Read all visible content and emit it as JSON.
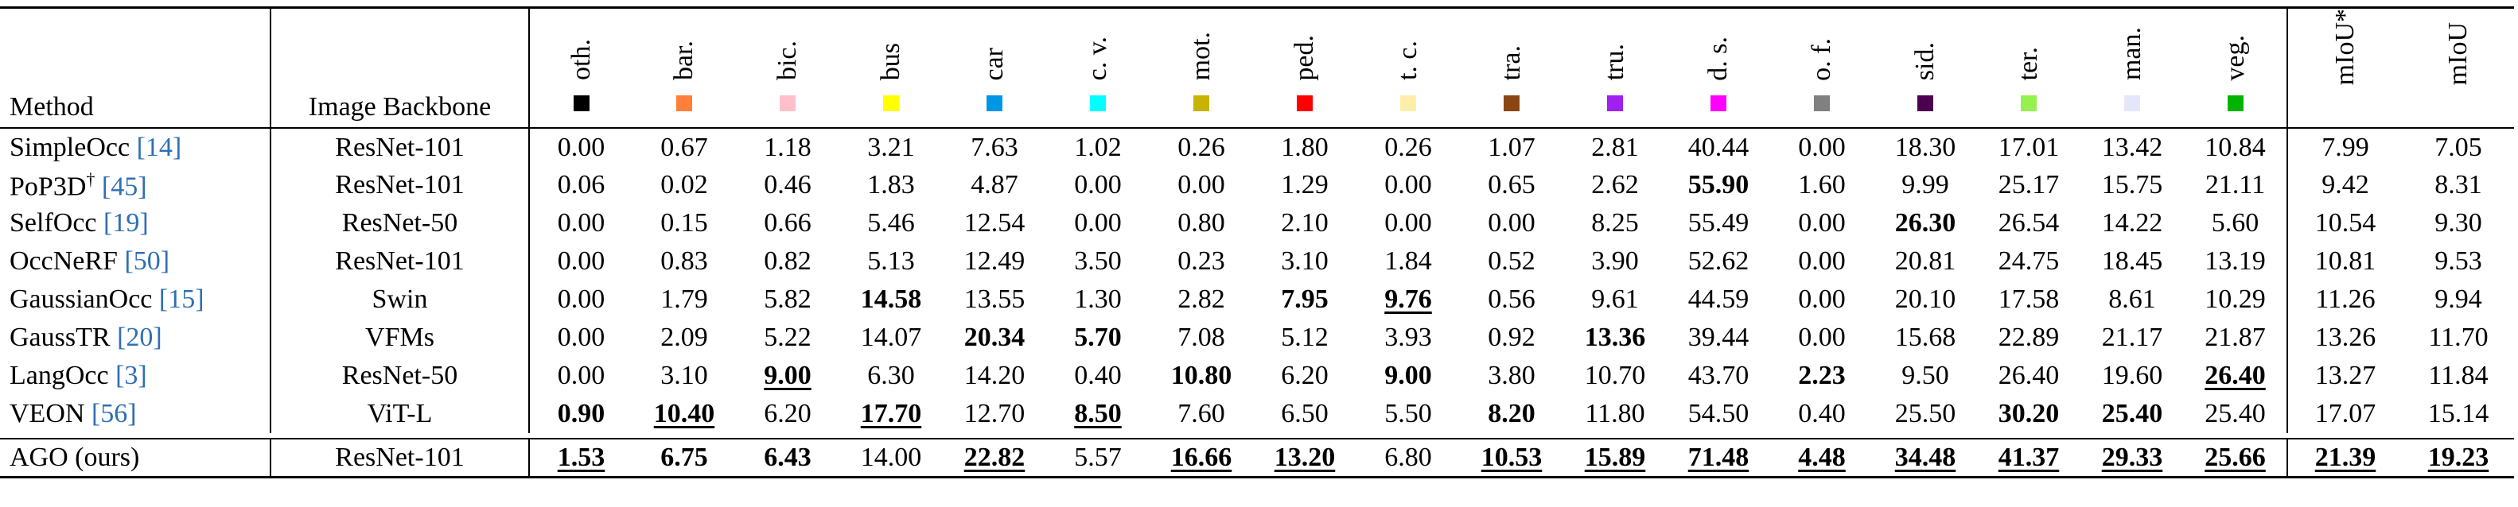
{
  "header": {
    "method": "Method",
    "backbone": "Image Backbone",
    "classes": [
      {
        "name": "oth.",
        "color": "#000000"
      },
      {
        "name": "bar.",
        "color": "#ff7f3a"
      },
      {
        "name": "bic.",
        "color": "#ffc0cb"
      },
      {
        "name": "bus",
        "color": "#ffff00"
      },
      {
        "name": "car",
        "color": "#0096e6"
      },
      {
        "name": "c. v.",
        "color": "#00ffff"
      },
      {
        "name": "mot.",
        "color": "#c8b400"
      },
      {
        "name": "ped.",
        "color": "#ff0000"
      },
      {
        "name": "t. c.",
        "color": "#ffeeaa"
      },
      {
        "name": "tra.",
        "color": "#8b4513"
      },
      {
        "name": "tru.",
        "color": "#a020f0"
      },
      {
        "name": "d. s.",
        "color": "#ff00ff"
      },
      {
        "name": "o. f.",
        "color": "#808080"
      },
      {
        "name": "sid.",
        "color": "#4b0050"
      },
      {
        "name": "ter.",
        "color": "#96f050"
      },
      {
        "name": "man.",
        "color": "#e6e6fa"
      },
      {
        "name": "veg.",
        "color": "#00b400"
      }
    ],
    "metrics": [
      "mIoU*",
      "mIoU"
    ]
  },
  "rows": [
    {
      "method": "SimpleOcc",
      "ref": "[14]",
      "backbone": "ResNet-101",
      "cells": [
        "0.00",
        "0.67",
        "1.18",
        "3.21",
        "7.63",
        "1.02",
        "0.26",
        "1.80",
        "0.26",
        "1.07",
        "2.81",
        "40.44",
        "0.00",
        "18.30",
        "17.01",
        "13.42",
        "10.84",
        "7.99",
        "7.05"
      ]
    },
    {
      "method": "PoP3D",
      "mark": "†",
      "ref": "[45]",
      "backbone": "ResNet-101",
      "cells": [
        "0.06",
        "0.02",
        "0.46",
        "1.83",
        "4.87",
        "0.00",
        "0.00",
        "1.29",
        "0.00",
        "0.65",
        "2.62",
        {
          "text": "55.90",
          "bold": true
        },
        "1.60",
        "9.99",
        "25.17",
        "15.75",
        "21.11",
        "9.42",
        "8.31"
      ]
    },
    {
      "method": "SelfOcc",
      "ref": "[19]",
      "backbone": "ResNet-50",
      "cells": [
        "0.00",
        "0.15",
        "0.66",
        "5.46",
        "12.54",
        "0.00",
        "0.80",
        "2.10",
        "0.00",
        "0.00",
        "8.25",
        "55.49",
        "0.00",
        {
          "text": "26.30",
          "bold": true
        },
        "26.54",
        "14.22",
        "5.60",
        "10.54",
        "9.30"
      ]
    },
    {
      "method": "OccNeRF",
      "ref": "[50]",
      "backbone": "ResNet-101",
      "cells": [
        "0.00",
        "0.83",
        "0.82",
        "5.13",
        "12.49",
        "3.50",
        "0.23",
        "3.10",
        "1.84",
        "0.52",
        "3.90",
        "52.62",
        "0.00",
        "20.81",
        "24.75",
        "18.45",
        "13.19",
        "10.81",
        "9.53"
      ]
    },
    {
      "method": "GaussianOcc",
      "ref": "[15]",
      "backbone": "Swin",
      "cells": [
        "0.00",
        "1.79",
        "5.82",
        {
          "text": "14.58",
          "bold": true
        },
        "13.55",
        "1.30",
        "2.82",
        {
          "text": "7.95",
          "bold": true
        },
        {
          "text": "9.76",
          "bold": true,
          "underline": true
        },
        "0.56",
        "9.61",
        "44.59",
        "0.00",
        "20.10",
        "17.58",
        "8.61",
        "10.29",
        "11.26",
        "9.94"
      ]
    },
    {
      "method": "GaussTR",
      "ref": "[20]",
      "backbone": "VFMs",
      "cells": [
        "0.00",
        "2.09",
        "5.22",
        "14.07",
        {
          "text": "20.34",
          "bold": true
        },
        {
          "text": "5.70",
          "bold": true
        },
        "7.08",
        "5.12",
        "3.93",
        "0.92",
        {
          "text": "13.36",
          "bold": true
        },
        "39.44",
        "0.00",
        "15.68",
        "22.89",
        "21.17",
        "21.87",
        "13.26",
        "11.70"
      ]
    },
    {
      "method": "LangOcc",
      "ref": "[3]",
      "backbone": "ResNet-50",
      "cells": [
        "0.00",
        "3.10",
        {
          "text": "9.00",
          "bold": true,
          "underline": true
        },
        "6.30",
        "14.20",
        "0.40",
        {
          "text": "10.80",
          "bold": true
        },
        "6.20",
        {
          "text": "9.00",
          "bold": true
        },
        "3.80",
        "10.70",
        "43.70",
        {
          "text": "2.23",
          "bold": true
        },
        "9.50",
        "26.40",
        "19.60",
        {
          "text": "26.40",
          "bold": true,
          "underline": true
        },
        "13.27",
        "11.84"
      ]
    },
    {
      "method": "VEON",
      "ref": "[56]",
      "backbone": "ViT-L",
      "cells": [
        {
          "text": "0.90",
          "bold": true
        },
        {
          "text": "10.40",
          "bold": true,
          "underline": true
        },
        "6.20",
        {
          "text": "17.70",
          "bold": true,
          "underline": true
        },
        "12.70",
        {
          "text": "8.50",
          "bold": true,
          "underline": true
        },
        "7.60",
        "6.50",
        "5.50",
        {
          "text": "8.20",
          "bold": true
        },
        "11.80",
        "54.50",
        "0.40",
        "25.50",
        {
          "text": "30.20",
          "bold": true
        },
        {
          "text": "25.40",
          "bold": true
        },
        "25.40",
        "17.07",
        "15.14"
      ]
    },
    {
      "method": "AGO (ours)",
      "backbone": "ResNet-101",
      "cells": [
        {
          "text": "1.53",
          "bold": true,
          "underline": true
        },
        {
          "text": "6.75",
          "bold": true
        },
        {
          "text": "6.43",
          "bold": true
        },
        "14.00",
        {
          "text": "22.82",
          "bold": true,
          "underline": true
        },
        "5.57",
        {
          "text": "16.66",
          "bold": true,
          "underline": true
        },
        {
          "text": "13.20",
          "bold": true,
          "underline": true
        },
        "6.80",
        {
          "text": "10.53",
          "bold": true,
          "underline": true
        },
        {
          "text": "15.89",
          "bold": true,
          "underline": true
        },
        {
          "text": "71.48",
          "bold": true,
          "underline": true
        },
        {
          "text": "4.48",
          "bold": true,
          "underline": true
        },
        {
          "text": "34.48",
          "bold": true,
          "underline": true
        },
        {
          "text": "41.37",
          "bold": true,
          "underline": true
        },
        {
          "text": "29.33",
          "bold": true,
          "underline": true
        },
        {
          "text": "25.66",
          "bold": true,
          "underline": true
        },
        {
          "text": "21.39",
          "bold": true,
          "underline": true
        },
        {
          "text": "19.23",
          "bold": true,
          "underline": true
        }
      ]
    }
  ]
}
